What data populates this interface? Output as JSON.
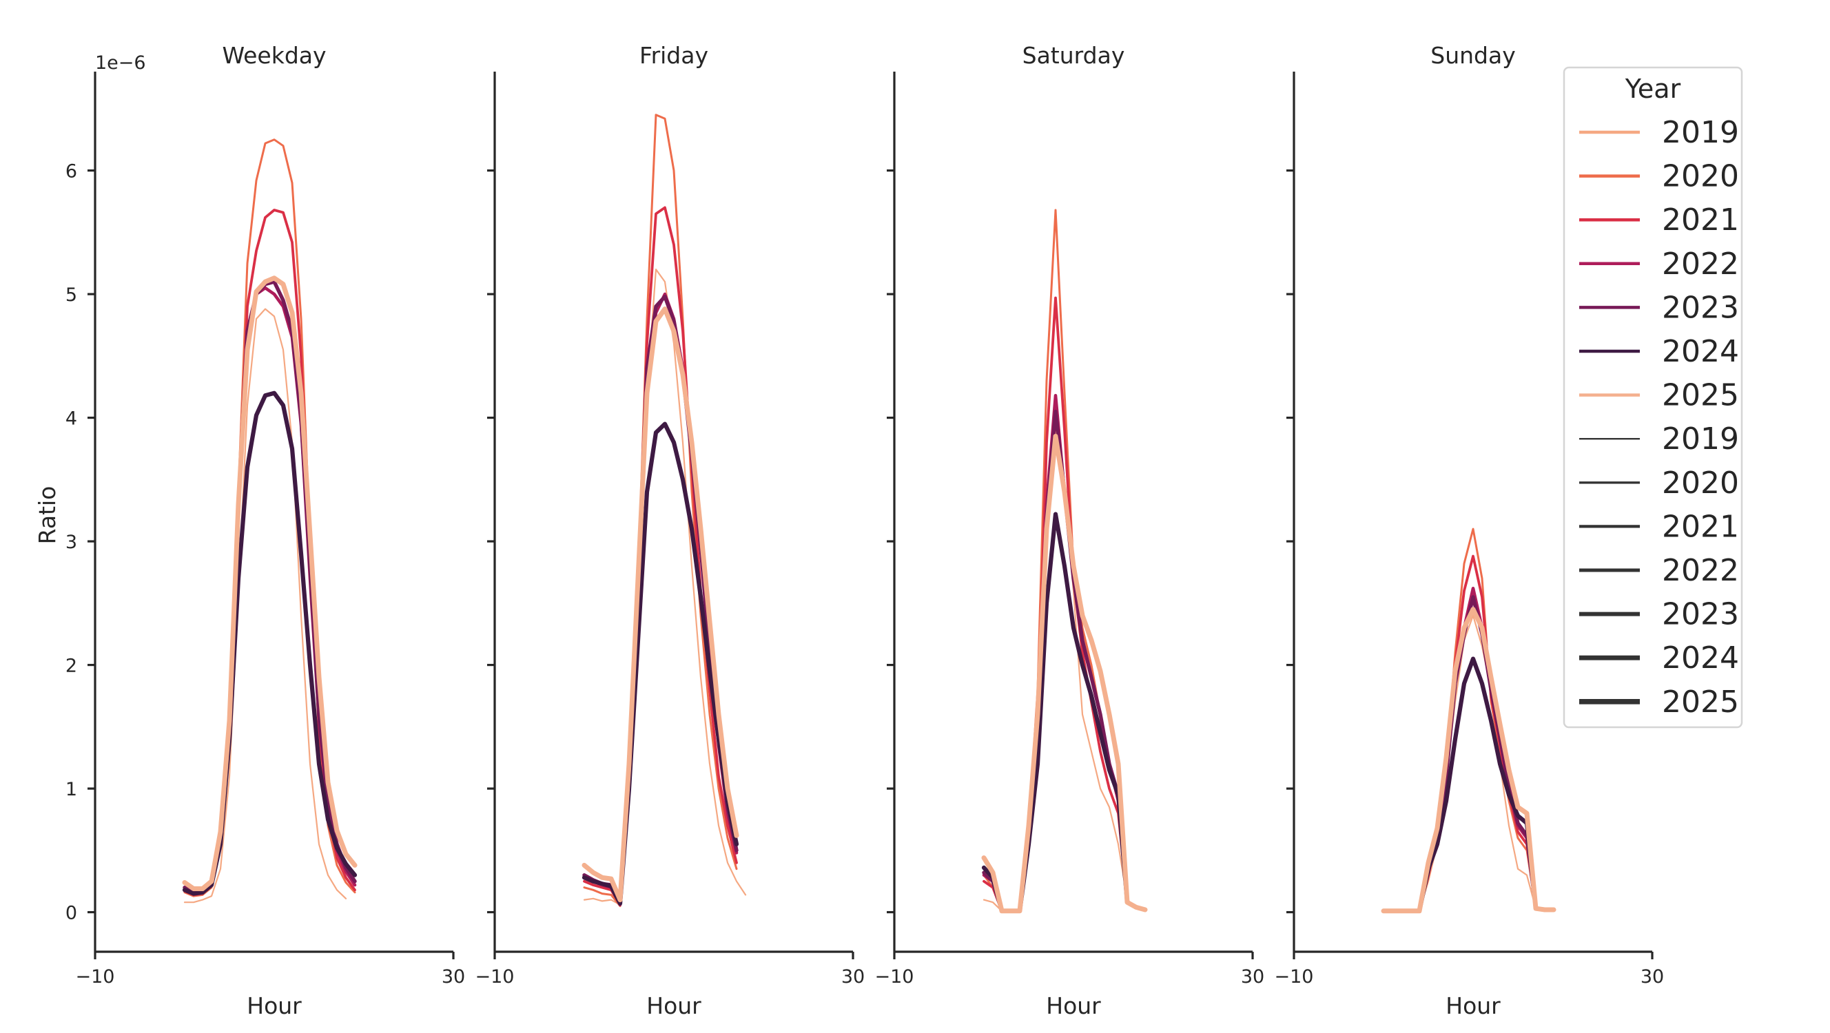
{
  "colors": {
    "2019": "#F5A882",
    "2020": "#EE6C4B",
    "2021": "#DA2F46",
    "2022": "#AE1C5A",
    "2023": "#771A57",
    "2024": "#3E1A43",
    "2025": "#F4B08E"
  },
  "chart_data": {
    "type": "line",
    "scale_label": "1e−6",
    "xlabel": "Hour",
    "ylabel": "Ratio",
    "xlim": [
      -10,
      30
    ],
    "ylim": [
      -0.32,
      6.8
    ],
    "x_ticks": [
      -10,
      30
    ],
    "y_ticks": [
      0,
      1,
      2,
      3,
      4,
      5,
      6
    ],
    "legend": {
      "title": "Year",
      "placement": "upper right",
      "color_entries": [
        "2019",
        "2020",
        "2021",
        "2022",
        "2023",
        "2024",
        "2025"
      ],
      "width_entries": [
        "2019",
        "2020",
        "2021",
        "2022",
        "2023",
        "2024",
        "2025"
      ]
    },
    "panels": [
      {
        "title": "Weekday",
        "x": [
          0,
          1,
          2,
          3,
          4,
          5,
          6,
          7,
          8,
          9,
          10,
          11,
          12,
          13,
          14,
          15,
          16,
          17,
          18,
          19,
          20,
          21,
          22,
          23
        ],
        "series": [
          {
            "name": "2019",
            "values": [
              0.08,
              0.08,
              0.1,
              0.13,
              0.35,
              1.1,
              2.6,
              4.1,
              4.8,
              4.88,
              4.82,
              4.55,
              3.8,
              2.4,
              1.2,
              0.55,
              0.3,
              0.18,
              0.11
            ]
          },
          {
            "name": "2020",
            "values": [
              0.16,
              0.13,
              0.14,
              0.2,
              0.55,
              1.4,
              3.4,
              5.25,
              5.92,
              6.22,
              6.25,
              6.2,
              5.9,
              4.8,
              3.0,
              1.4,
              0.7,
              0.38,
              0.24,
              0.16
            ]
          },
          {
            "name": "2021",
            "values": [
              0.17,
              0.14,
              0.15,
              0.22,
              0.58,
              1.45,
              3.3,
              4.9,
              5.35,
              5.62,
              5.68,
              5.66,
              5.42,
              4.5,
              2.9,
              1.5,
              0.8,
              0.44,
              0.28,
              0.18
            ]
          },
          {
            "name": "2022",
            "values": [
              0.19,
              0.15,
              0.16,
              0.23,
              0.6,
              1.5,
              3.2,
              4.6,
              5.0,
              5.05,
              5.0,
              4.9,
              4.65,
              3.95,
              2.7,
              1.55,
              0.85,
              0.5,
              0.33,
              0.22
            ]
          },
          {
            "name": "2023",
            "values": [
              0.2,
              0.16,
              0.17,
              0.24,
              0.62,
              1.55,
              3.3,
              4.7,
              5.0,
              5.08,
              5.1,
              4.95,
              4.7,
              4.0,
              2.8,
              1.6,
              0.9,
              0.55,
              0.36,
              0.25
            ]
          },
          {
            "name": "2024",
            "values": [
              0.18,
              0.15,
              0.16,
              0.22,
              0.55,
              1.4,
              2.7,
              3.6,
              4.02,
              4.18,
              4.2,
              4.1,
              3.75,
              2.9,
              2.0,
              1.2,
              0.75,
              0.52,
              0.39,
              0.3
            ]
          },
          {
            "name": "2025",
            "values": [
              0.24,
              0.19,
              0.19,
              0.25,
              0.65,
              1.55,
              3.3,
              4.55,
              5.02,
              5.1,
              5.13,
              5.08,
              4.85,
              4.2,
              3.05,
              1.9,
              1.05,
              0.66,
              0.47,
              0.38
            ]
          }
        ]
      },
      {
        "title": "Friday",
        "x": [
          0,
          1,
          2,
          3,
          4,
          5,
          6,
          7,
          8,
          9,
          10,
          11,
          12,
          13,
          14,
          15,
          16,
          17,
          18,
          19,
          20,
          21,
          22,
          23
        ],
        "series": [
          {
            "name": "2019",
            "values": [
              0.1,
              0.11,
              0.09,
              0.1,
              0.06,
              0.9,
              2.4,
              4.2,
              5.2,
              5.1,
              4.6,
              3.8,
              2.8,
              1.9,
              1.2,
              0.7,
              0.4,
              0.25,
              0.14
            ]
          },
          {
            "name": "2020",
            "values": [
              0.2,
              0.18,
              0.15,
              0.14,
              0.05,
              1.0,
              2.7,
              4.8,
              6.45,
              6.42,
              6.0,
              4.8,
              3.4,
              2.4,
              1.6,
              1.0,
              0.6,
              0.35
            ]
          },
          {
            "name": "2021",
            "values": [
              0.25,
              0.22,
              0.2,
              0.18,
              0.06,
              1.0,
              2.6,
              4.6,
              5.65,
              5.7,
              5.4,
              4.7,
              3.6,
              2.6,
              1.8,
              1.1,
              0.7,
              0.4
            ]
          },
          {
            "name": "2022",
            "values": [
              0.28,
              0.25,
              0.22,
              0.2,
              0.06,
              1.0,
              2.5,
              4.3,
              4.85,
              5.0,
              4.8,
              4.4,
              3.8,
              3.0,
              2.1,
              1.35,
              0.8,
              0.48
            ]
          },
          {
            "name": "2023",
            "values": [
              0.3,
              0.26,
              0.23,
              0.22,
              0.07,
              1.1,
              2.6,
              4.4,
              4.9,
              4.98,
              4.78,
              4.35,
              3.7,
              2.95,
              2.1,
              1.4,
              0.85,
              0.5
            ]
          },
          {
            "name": "2024",
            "values": [
              0.28,
              0.25,
              0.23,
              0.21,
              0.07,
              1.0,
              2.2,
              3.4,
              3.88,
              3.95,
              3.8,
              3.5,
              3.1,
              2.55,
              1.95,
              1.4,
              0.9,
              0.55
            ]
          },
          {
            "name": "2025",
            "values": [
              0.38,
              0.32,
              0.28,
              0.27,
              0.1,
              1.2,
              2.7,
              4.2,
              4.78,
              4.88,
              4.7,
              4.35,
              3.8,
              3.1,
              2.35,
              1.6,
              1.0,
              0.62
            ]
          }
        ]
      },
      {
        "title": "Saturday",
        "x": [
          0,
          1,
          2,
          3,
          4,
          5,
          6,
          7,
          8,
          9,
          10,
          11,
          12,
          13,
          14,
          15,
          16,
          17,
          18,
          19
        ],
        "series": [
          {
            "name": "2019",
            "values": [
              0.1,
              0.08,
              0.01,
              0.01,
              0.01,
              0.6,
              1.4,
              3.0,
              3.9,
              3.4,
              2.6,
              1.6,
              1.3,
              1.0,
              0.85,
              0.55,
              0.1,
              0.04,
              0.02
            ]
          },
          {
            "name": "2020",
            "values": [
              0.3,
              0.2,
              0.01,
              0.01,
              0.01,
              0.7,
              1.8,
              4.3,
              5.68,
              4.2,
              2.8,
              2.3,
              2.0,
              1.6,
              1.2,
              0.9,
              0.08,
              0.04,
              0.02
            ]
          },
          {
            "name": "2021",
            "values": [
              0.25,
              0.2,
              0.01,
              0.01,
              0.01,
              0.6,
              1.5,
              3.8,
              4.97,
              3.9,
              2.7,
              2.1,
              1.7,
              1.3,
              1.0,
              0.8,
              0.08,
              0.04,
              0.02
            ]
          },
          {
            "name": "2022",
            "values": [
              0.3,
              0.25,
              0.01,
              0.01,
              0.01,
              0.6,
              1.6,
              3.3,
              4.18,
              3.4,
              2.7,
              2.2,
              1.9,
              1.6,
              1.2,
              0.9,
              0.08,
              0.04,
              0.02
            ]
          },
          {
            "name": "2023",
            "values": [
              0.32,
              0.25,
              0.01,
              0.01,
              0.01,
              0.6,
              1.5,
              3.2,
              4.05,
              3.4,
              2.7,
              2.2,
              1.9,
              1.6,
              1.2,
              0.95,
              0.08,
              0.04,
              0.02
            ]
          },
          {
            "name": "2024",
            "values": [
              0.36,
              0.28,
              0.01,
              0.01,
              0.01,
              0.55,
              1.2,
              2.5,
              3.22,
              2.8,
              2.3,
              2.0,
              1.75,
              1.45,
              1.15,
              0.95,
              0.08,
              0.04,
              0.02
            ]
          },
          {
            "name": "2025",
            "values": [
              0.44,
              0.32,
              0.01,
              0.01,
              0.01,
              0.7,
              1.6,
              3.1,
              3.85,
              3.4,
              2.8,
              2.4,
              2.2,
              1.95,
              1.6,
              1.2,
              0.08,
              0.04,
              0.02
            ]
          }
        ]
      },
      {
        "title": "Sunday",
        "x": [
          0,
          1,
          2,
          3,
          4,
          5,
          6,
          7,
          8,
          9,
          10,
          11,
          12,
          13,
          14,
          15,
          16,
          17,
          18,
          19,
          20
        ],
        "series": [
          {
            "name": "2019",
            "values": [
              0.01,
              0.01,
              0.01,
              0.01,
              0.01,
              0.25,
              0.55,
              1.1,
              1.7,
              2.2,
              2.4,
              2.15,
              1.8,
              1.2,
              0.7,
              0.35,
              0.3,
              0.03,
              0.02,
              0.02
            ]
          },
          {
            "name": "2020",
            "values": [
              0.01,
              0.01,
              0.01,
              0.01,
              0.01,
              0.28,
              0.6,
              1.2,
              2.1,
              2.82,
              3.1,
              2.7,
              1.7,
              1.3,
              0.9,
              0.6,
              0.5,
              0.03,
              0.02,
              0.02
            ]
          },
          {
            "name": "2021",
            "values": [
              0.01,
              0.01,
              0.01,
              0.01,
              0.01,
              0.3,
              0.62,
              1.2,
              2.0,
              2.6,
              2.88,
              2.55,
              1.75,
              1.35,
              0.95,
              0.65,
              0.55,
              0.03,
              0.02,
              0.02
            ]
          },
          {
            "name": "2022",
            "values": [
              0.01,
              0.01,
              0.01,
              0.01,
              0.01,
              0.32,
              0.62,
              1.15,
              1.9,
              2.3,
              2.62,
              2.3,
              1.8,
              1.4,
              1.0,
              0.7,
              0.6,
              0.03,
              0.02,
              0.02
            ]
          },
          {
            "name": "2023",
            "values": [
              0.01,
              0.01,
              0.01,
              0.01,
              0.01,
              0.33,
              0.63,
              1.1,
              1.85,
              2.25,
              2.55,
              2.25,
              1.8,
              1.42,
              1.02,
              0.72,
              0.62,
              0.03,
              0.02,
              0.02
            ]
          },
          {
            "name": "2024",
            "values": [
              0.01,
              0.01,
              0.01,
              0.01,
              0.01,
              0.35,
              0.55,
              0.9,
              1.4,
              1.85,
              2.05,
              1.85,
              1.55,
              1.2,
              0.95,
              0.78,
              0.72,
              0.03,
              0.02,
              0.02
            ]
          },
          {
            "name": "2025",
            "values": [
              0.01,
              0.01,
              0.01,
              0.01,
              0.01,
              0.4,
              0.68,
              1.25,
              1.95,
              2.3,
              2.45,
              2.3,
              1.9,
              1.52,
              1.15,
              0.85,
              0.8,
              0.03,
              0.02,
              0.02
            ]
          }
        ]
      }
    ]
  }
}
